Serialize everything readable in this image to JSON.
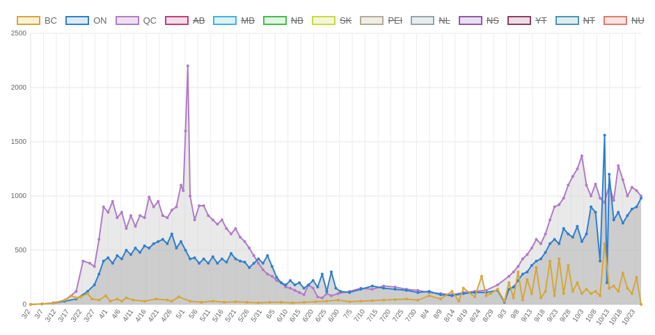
{
  "legend": [
    {
      "name": "BC",
      "color": "#d4a73a",
      "fill": "#fbf1d4",
      "hidden": false
    },
    {
      "name": "ON",
      "color": "#2f7fcd",
      "fill": "#ddeaf6",
      "hidden": false
    },
    {
      "name": "QC",
      "color": "#b07cc6",
      "fill": "#ece0f2",
      "hidden": false
    },
    {
      "name": "AB",
      "color": "#c43a7b",
      "fill": "#f4dde9",
      "hidden": true
    },
    {
      "name": "MB",
      "color": "#3cb6dc",
      "fill": "#dcf1f8",
      "hidden": true
    },
    {
      "name": "NB",
      "color": "#3fbf4a",
      "fill": "#e0f5e2",
      "hidden": true
    },
    {
      "name": "SK",
      "color": "#c8d940",
      "fill": "#f3f7d8",
      "hidden": true
    },
    {
      "name": "PEI",
      "color": "#b2ab97",
      "fill": "#efede7",
      "hidden": true
    },
    {
      "name": "NL",
      "color": "#97a4aa",
      "fill": "#e9edee",
      "hidden": true
    },
    {
      "name": "NS",
      "color": "#8f5aa6",
      "fill": "#e9dff0",
      "hidden": true
    },
    {
      "name": "YT",
      "color": "#8c3e5e",
      "fill": "#eeddE4",
      "hidden": true
    },
    {
      "name": "NT",
      "color": "#4a97ad",
      "fill": "#dcecf1",
      "hidden": true
    },
    {
      "name": "NU",
      "color": "#e07a6e",
      "fill": "#f9e3e0",
      "hidden": true
    }
  ],
  "chart_data": {
    "type": "area",
    "ylim": [
      0,
      2500
    ],
    "yticks": [
      "0",
      "500",
      "1000",
      "1500",
      "2000",
      "2500"
    ],
    "yticks_values": [
      0,
      500,
      1000,
      1500,
      2000,
      2500
    ],
    "x_start": "3/2",
    "x_end": "10/25",
    "xticks": [
      "3/2",
      "3/7",
      "3/12",
      "3/17",
      "3/22",
      "3/27",
      "4/1",
      "4/6",
      "4/11",
      "4/16",
      "4/21",
      "4/26",
      "5/1",
      "5/6",
      "5/11",
      "5/16",
      "5/21",
      "5/26",
      "5/31",
      "6/5",
      "6/10",
      "6/15",
      "6/20",
      "6/25",
      "6/30",
      "7/5",
      "7/10",
      "7/15",
      "7/20",
      "7/25",
      "7/30",
      "8/4",
      "8/9",
      "8/14",
      "8/19",
      "8/24",
      "8/29",
      "9/3",
      "9/8",
      "9/13",
      "9/18",
      "9/23",
      "9/28",
      "10/3",
      "10/8",
      "10/13",
      "10/18",
      "10/23"
    ],
    "grid": true,
    "legend_position": "top-left",
    "series": [
      {
        "name": "QC",
        "points": [
          [
            0,
            0
          ],
          [
            5,
            5
          ],
          [
            10,
            15
          ],
          [
            15,
            40
          ],
          [
            20,
            120
          ],
          [
            23,
            400
          ],
          [
            26,
            380
          ],
          [
            28,
            350
          ],
          [
            30,
            600
          ],
          [
            32,
            900
          ],
          [
            34,
            850
          ],
          [
            36,
            950
          ],
          [
            38,
            800
          ],
          [
            40,
            850
          ],
          [
            42,
            700
          ],
          [
            44,
            820
          ],
          [
            46,
            720
          ],
          [
            48,
            820
          ],
          [
            50,
            800
          ],
          [
            52,
            990
          ],
          [
            54,
            900
          ],
          [
            56,
            950
          ],
          [
            58,
            820
          ],
          [
            60,
            800
          ],
          [
            62,
            870
          ],
          [
            64,
            900
          ],
          [
            66,
            1100
          ],
          [
            67,
            1050
          ],
          [
            68,
            1600
          ],
          [
            69,
            2200
          ],
          [
            70,
            1000
          ],
          [
            72,
            780
          ],
          [
            74,
            910
          ],
          [
            76,
            910
          ],
          [
            78,
            820
          ],
          [
            80,
            780
          ],
          [
            82,
            740
          ],
          [
            84,
            780
          ],
          [
            86,
            700
          ],
          [
            88,
            650
          ],
          [
            90,
            700
          ],
          [
            92,
            620
          ],
          [
            94,
            580
          ],
          [
            96,
            520
          ],
          [
            98,
            450
          ],
          [
            100,
            380
          ],
          [
            102,
            320
          ],
          [
            104,
            280
          ],
          [
            106,
            260
          ],
          [
            108,
            220
          ],
          [
            110,
            200
          ],
          [
            112,
            160
          ],
          [
            114,
            150
          ],
          [
            116,
            130
          ],
          [
            118,
            110
          ],
          [
            120,
            90
          ],
          [
            122,
            180
          ],
          [
            124,
            150
          ],
          [
            126,
            70
          ],
          [
            128,
            60
          ],
          [
            130,
            100
          ],
          [
            132,
            80
          ],
          [
            135,
            100
          ],
          [
            140,
            120
          ],
          [
            145,
            150
          ],
          [
            150,
            140
          ],
          [
            155,
            170
          ],
          [
            160,
            160
          ],
          [
            165,
            140
          ],
          [
            170,
            130
          ],
          [
            175,
            110
          ],
          [
            180,
            100
          ],
          [
            185,
            90
          ],
          [
            190,
            110
          ],
          [
            195,
            120
          ],
          [
            200,
            130
          ],
          [
            205,
            180
          ],
          [
            210,
            260
          ],
          [
            212,
            300
          ],
          [
            214,
            350
          ],
          [
            216,
            420
          ],
          [
            218,
            460
          ],
          [
            220,
            520
          ],
          [
            222,
            600
          ],
          [
            224,
            560
          ],
          [
            226,
            650
          ],
          [
            228,
            780
          ],
          [
            230,
            900
          ],
          [
            232,
            920
          ],
          [
            234,
            980
          ],
          [
            236,
            1100
          ],
          [
            238,
            1180
          ],
          [
            240,
            1250
          ],
          [
            242,
            1370
          ],
          [
            244,
            1100
          ],
          [
            246,
            1000
          ],
          [
            248,
            1110
          ],
          [
            250,
            980
          ],
          [
            252,
            940
          ],
          [
            254,
            1100
          ],
          [
            256,
            960
          ],
          [
            258,
            1280
          ],
          [
            260,
            1150
          ],
          [
            262,
            1000
          ],
          [
            264,
            1080
          ],
          [
            266,
            1050
          ],
          [
            268,
            1000
          ]
        ]
      },
      {
        "name": "ON",
        "points": [
          [
            0,
            0
          ],
          [
            5,
            5
          ],
          [
            10,
            10
          ],
          [
            15,
            30
          ],
          [
            20,
            50
          ],
          [
            25,
            120
          ],
          [
            28,
            180
          ],
          [
            30,
            280
          ],
          [
            32,
            400
          ],
          [
            34,
            430
          ],
          [
            36,
            380
          ],
          [
            38,
            450
          ],
          [
            40,
            420
          ],
          [
            42,
            500
          ],
          [
            44,
            460
          ],
          [
            46,
            520
          ],
          [
            48,
            480
          ],
          [
            50,
            540
          ],
          [
            52,
            520
          ],
          [
            54,
            560
          ],
          [
            56,
            580
          ],
          [
            58,
            600
          ],
          [
            60,
            560
          ],
          [
            62,
            650
          ],
          [
            64,
            520
          ],
          [
            66,
            580
          ],
          [
            68,
            500
          ],
          [
            70,
            420
          ],
          [
            72,
            430
          ],
          [
            74,
            380
          ],
          [
            76,
            420
          ],
          [
            78,
            380
          ],
          [
            80,
            440
          ],
          [
            82,
            380
          ],
          [
            84,
            420
          ],
          [
            86,
            390
          ],
          [
            88,
            470
          ],
          [
            90,
            420
          ],
          [
            92,
            400
          ],
          [
            94,
            390
          ],
          [
            96,
            340
          ],
          [
            98,
            380
          ],
          [
            100,
            420
          ],
          [
            102,
            380
          ],
          [
            104,
            450
          ],
          [
            106,
            350
          ],
          [
            108,
            250
          ],
          [
            110,
            200
          ],
          [
            112,
            180
          ],
          [
            114,
            220
          ],
          [
            116,
            180
          ],
          [
            118,
            200
          ],
          [
            120,
            150
          ],
          [
            122,
            180
          ],
          [
            124,
            220
          ],
          [
            126,
            160
          ],
          [
            128,
            280
          ],
          [
            130,
            120
          ],
          [
            132,
            300
          ],
          [
            134,
            150
          ],
          [
            136,
            120
          ],
          [
            140,
            110
          ],
          [
            145,
            140
          ],
          [
            150,
            170
          ],
          [
            155,
            150
          ],
          [
            160,
            140
          ],
          [
            165,
            130
          ],
          [
            170,
            110
          ],
          [
            175,
            120
          ],
          [
            180,
            90
          ],
          [
            185,
            80
          ],
          [
            190,
            100
          ],
          [
            195,
            110
          ],
          [
            200,
            110
          ],
          [
            205,
            130
          ],
          [
            208,
            20
          ],
          [
            210,
            140
          ],
          [
            212,
            160
          ],
          [
            214,
            220
          ],
          [
            216,
            280
          ],
          [
            218,
            300
          ],
          [
            220,
            360
          ],
          [
            222,
            400
          ],
          [
            224,
            420
          ],
          [
            226,
            480
          ],
          [
            228,
            560
          ],
          [
            230,
            600
          ],
          [
            232,
            560
          ],
          [
            234,
            700
          ],
          [
            236,
            650
          ],
          [
            238,
            620
          ],
          [
            240,
            720
          ],
          [
            242,
            580
          ],
          [
            244,
            650
          ],
          [
            246,
            900
          ],
          [
            248,
            850
          ],
          [
            250,
            400
          ],
          [
            252,
            1560
          ],
          [
            253,
            200
          ],
          [
            254,
            1200
          ],
          [
            256,
            780
          ],
          [
            258,
            850
          ],
          [
            260,
            750
          ],
          [
            262,
            820
          ],
          [
            264,
            880
          ],
          [
            266,
            900
          ],
          [
            268,
            980
          ]
        ]
      },
      {
        "name": "BC",
        "points": [
          [
            0,
            0
          ],
          [
            5,
            5
          ],
          [
            10,
            10
          ],
          [
            15,
            40
          ],
          [
            18,
            80
          ],
          [
            20,
            60
          ],
          [
            22,
            70
          ],
          [
            25,
            100
          ],
          [
            27,
            50
          ],
          [
            30,
            40
          ],
          [
            33,
            80
          ],
          [
            35,
            30
          ],
          [
            38,
            50
          ],
          [
            40,
            30
          ],
          [
            42,
            60
          ],
          [
            45,
            40
          ],
          [
            50,
            30
          ],
          [
            55,
            50
          ],
          [
            60,
            40
          ],
          [
            62,
            30
          ],
          [
            65,
            70
          ],
          [
            70,
            30
          ],
          [
            75,
            20
          ],
          [
            80,
            30
          ],
          [
            85,
            20
          ],
          [
            90,
            25
          ],
          [
            95,
            20
          ],
          [
            100,
            15
          ],
          [
            105,
            20
          ],
          [
            110,
            20
          ],
          [
            115,
            15
          ],
          [
            120,
            20
          ],
          [
            125,
            25
          ],
          [
            130,
            30
          ],
          [
            135,
            40
          ],
          [
            140,
            25
          ],
          [
            145,
            30
          ],
          [
            150,
            35
          ],
          [
            155,
            40
          ],
          [
            160,
            45
          ],
          [
            165,
            50
          ],
          [
            170,
            40
          ],
          [
            175,
            80
          ],
          [
            180,
            50
          ],
          [
            185,
            120
          ],
          [
            188,
            30
          ],
          [
            190,
            150
          ],
          [
            195,
            70
          ],
          [
            198,
            260
          ],
          [
            200,
            80
          ],
          [
            202,
            100
          ],
          [
            205,
            140
          ],
          [
            208,
            30
          ],
          [
            210,
            200
          ],
          [
            212,
            60
          ],
          [
            214,
            300
          ],
          [
            216,
            40
          ],
          [
            218,
            230
          ],
          [
            220,
            100
          ],
          [
            222,
            340
          ],
          [
            224,
            60
          ],
          [
            226,
            120
          ],
          [
            228,
            400
          ],
          [
            230,
            80
          ],
          [
            232,
            420
          ],
          [
            234,
            100
          ],
          [
            236,
            360
          ],
          [
            238,
            120
          ],
          [
            240,
            200
          ],
          [
            242,
            100
          ],
          [
            244,
            140
          ],
          [
            246,
            100
          ],
          [
            248,
            120
          ],
          [
            250,
            80
          ],
          [
            252,
            560
          ],
          [
            254,
            150
          ],
          [
            256,
            170
          ],
          [
            258,
            120
          ],
          [
            260,
            290
          ],
          [
            262,
            150
          ],
          [
            264,
            100
          ],
          [
            266,
            250
          ],
          [
            268,
            0
          ]
        ]
      }
    ]
  }
}
